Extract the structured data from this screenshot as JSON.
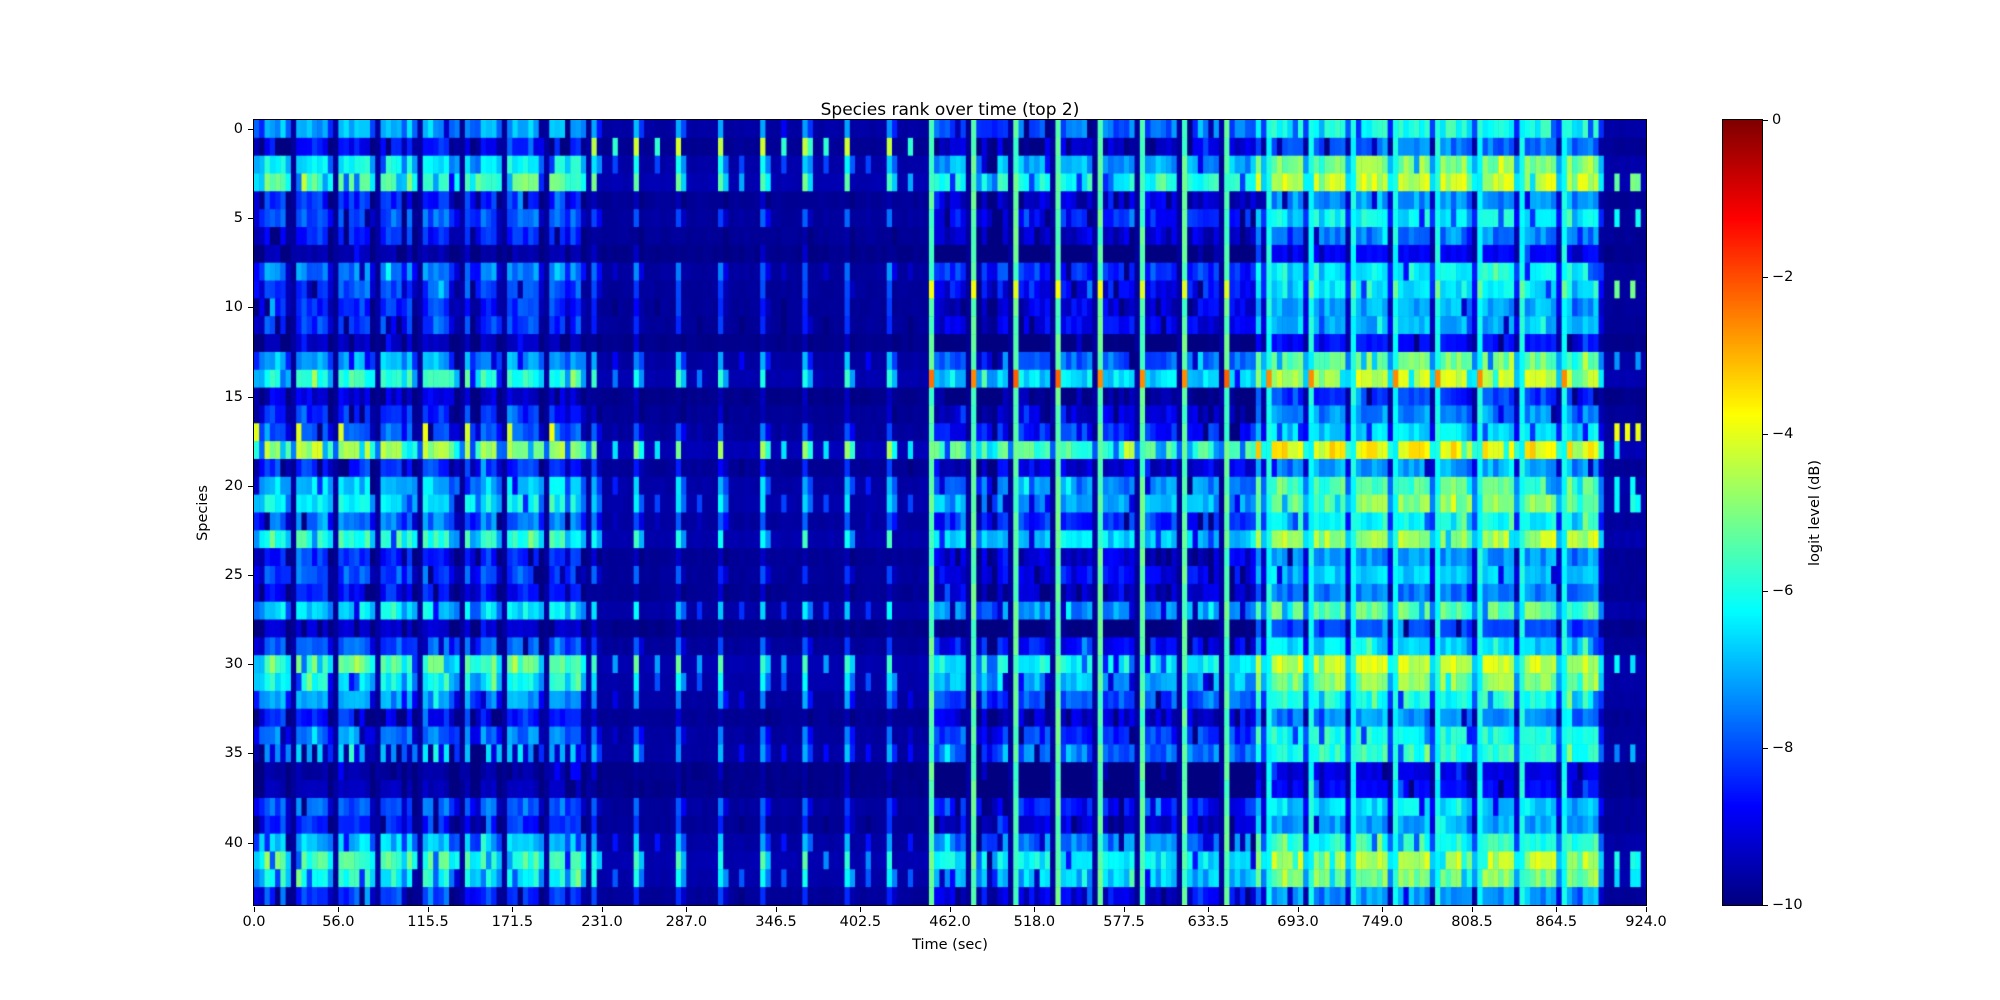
{
  "chart_data": {
    "type": "heatmap",
    "title": "Species rank over time (top 2)",
    "xlabel": "Time (sec)",
    "ylabel": "Species",
    "x_range": [
      0,
      924
    ],
    "n_rows": 44,
    "n_cols": 264,
    "col_seconds": 3.5,
    "period_cols": 8,
    "seed": 7,
    "x_ticks": [
      {
        "t": 0,
        "label": "0.0"
      },
      {
        "t": 56,
        "label": "56.0"
      },
      {
        "t": 115.5,
        "label": "115.5"
      },
      {
        "t": 171.5,
        "label": "171.5"
      },
      {
        "t": 231,
        "label": "231.0"
      },
      {
        "t": 287,
        "label": "287.0"
      },
      {
        "t": 346.5,
        "label": "346.5"
      },
      {
        "t": 402.5,
        "label": "402.5"
      },
      {
        "t": 462,
        "label": "462.0"
      },
      {
        "t": 518,
        "label": "518.0"
      },
      {
        "t": 577.5,
        "label": "577.5"
      },
      {
        "t": 633.5,
        "label": "633.5"
      },
      {
        "t": 693,
        "label": "693.0"
      },
      {
        "t": 749,
        "label": "749.0"
      },
      {
        "t": 808.5,
        "label": "808.5"
      },
      {
        "t": 864.5,
        "label": "864.5"
      },
      {
        "t": 924,
        "label": "924.0"
      }
    ],
    "y_ticks": [
      {
        "v": 0,
        "label": "0"
      },
      {
        "v": 5,
        "label": "5"
      },
      {
        "v": 10,
        "label": "10"
      },
      {
        "v": 15,
        "label": "15"
      },
      {
        "v": 20,
        "label": "20"
      },
      {
        "v": 25,
        "label": "25"
      },
      {
        "v": 30,
        "label": "30"
      },
      {
        "v": 35,
        "label": "35"
      },
      {
        "v": 40,
        "label": "40"
      }
    ],
    "colorbar": {
      "label": "logit level (dB)",
      "vmin": -10,
      "vmax": 0,
      "colormap": "jet",
      "ticks": [
        {
          "v": 0,
          "label": "0"
        },
        {
          "v": -2,
          "label": "−2"
        },
        {
          "v": -4,
          "label": "−4"
        },
        {
          "v": -6,
          "label": "−6"
        },
        {
          "v": -8,
          "label": "−8"
        },
        {
          "v": -10,
          "label": "−10"
        }
      ]
    },
    "sections": [
      {
        "name": "blocks",
        "start_col": 0,
        "end_col": 64,
        "desc": "periodic bright blocks every 28s"
      },
      {
        "name": "sparse",
        "start_col": 64,
        "end_col": 128,
        "desc": "dark background with sparse dashes at period starts"
      },
      {
        "name": "lines",
        "start_col": 128,
        "end_col": 190,
        "desc": "dim blocks with full-height green vertical lines every 28s"
      },
      {
        "name": "bright",
        "start_col": 190,
        "end_col": 256,
        "desc": "overall brighter blocks"
      },
      {
        "name": "dark-end",
        "start_col": 256,
        "end_col": 264,
        "desc": "dark tail with sparse dashes"
      }
    ],
    "rows": [
      {
        "b1": -7.0,
        "b4": -6.0,
        "acc": null
      },
      {
        "b1": -8.6,
        "b4": -7.6,
        "acc": "s2yellow"
      },
      {
        "b1": -6.3,
        "b4": -4.9,
        "acc": null
      },
      {
        "b1": -5.3,
        "b4": -4.3,
        "acc": null
      },
      {
        "b1": -8.4,
        "b4": -7.3,
        "acc": null
      },
      {
        "b1": -7.8,
        "b4": -6.3,
        "acc": null
      },
      {
        "b1": -8.4,
        "b4": -7.5,
        "acc": null
      },
      {
        "b1": -9.5,
        "b4": -8.8,
        "acc": null
      },
      {
        "b1": -7.5,
        "b4": -6.2,
        "acc": null
      },
      {
        "b1": -8.0,
        "b4": -6.4,
        "acc": "lineYellow"
      },
      {
        "b1": -8.3,
        "b4": -7.1,
        "acc": null
      },
      {
        "b1": -8.2,
        "b4": -7.0,
        "acc": null
      },
      {
        "b1": -9.3,
        "b4": -8.6,
        "acc": null
      },
      {
        "b1": -7.0,
        "b4": -5.1,
        "acc": null
      },
      {
        "b1": -5.8,
        "b4": -4.4,
        "acc": "lineOrange"
      },
      {
        "b1": -9.1,
        "b4": -8.2,
        "acc": null
      },
      {
        "b1": -8.4,
        "b4": -7.4,
        "acc": null
      },
      {
        "b1": -7.7,
        "b4": -6.5,
        "acc": "blockYellow"
      },
      {
        "b1": -4.7,
        "b4": -3.7,
        "acc": null
      },
      {
        "b1": -8.3,
        "b4": -7.1,
        "acc": null
      },
      {
        "b1": -6.7,
        "b4": -5.5,
        "acc": null
      },
      {
        "b1": -6.3,
        "b4": -5.0,
        "acc": null
      },
      {
        "b1": -7.6,
        "b4": -6.2,
        "acc": null
      },
      {
        "b1": -5.8,
        "b4": -4.6,
        "acc": null
      },
      {
        "b1": -8.4,
        "b4": -7.2,
        "acc": null
      },
      {
        "b1": -8.0,
        "b4": -6.7,
        "acc": null
      },
      {
        "b1": -8.6,
        "b4": -7.5,
        "acc": null
      },
      {
        "b1": -6.5,
        "b4": -5.3,
        "acc": null
      },
      {
        "b1": -9.2,
        "b4": -8.0,
        "acc": null
      },
      {
        "b1": -7.9,
        "b4": -6.6,
        "acc": null
      },
      {
        "b1": -5.4,
        "b4": -4.3,
        "acc": null
      },
      {
        "b1": -6.2,
        "b4": -4.9,
        "acc": null
      },
      {
        "b1": -7.2,
        "b4": -6.0,
        "acc": null
      },
      {
        "b1": -8.5,
        "b4": -7.4,
        "acc": null
      },
      {
        "b1": -7.5,
        "b4": -6.0,
        "acc": null
      },
      {
        "b1": -6.9,
        "b4": -5.8,
        "acc": "dashes"
      },
      {
        "b1": -9.6,
        "b4": -9.0,
        "acc": null
      },
      {
        "b1": -9.4,
        "b4": -8.7,
        "acc": null
      },
      {
        "b1": -7.8,
        "b4": -6.6,
        "acc": null
      },
      {
        "b1": -8.3,
        "b4": -7.1,
        "acc": null
      },
      {
        "b1": -6.8,
        "b4": -5.8,
        "acc": null
      },
      {
        "b1": -5.6,
        "b4": -4.4,
        "acc": null
      },
      {
        "b1": -6.1,
        "b4": -5.1,
        "acc": null
      },
      {
        "b1": -8.2,
        "b4": -7.2,
        "acc": null
      }
    ],
    "end_dashes": [
      {
        "row": 3,
        "level": -5.2
      },
      {
        "row": 5,
        "level": -6.2
      },
      {
        "row": 9,
        "level": -5.4
      },
      {
        "row": 13,
        "level": -7.0
      },
      {
        "row": 17,
        "level": -4.0
      },
      {
        "row": 18,
        "level": -6.2
      },
      {
        "row": 20,
        "level": -6.4
      },
      {
        "row": 21,
        "level": -6.0
      },
      {
        "row": 30,
        "level": -6.4
      },
      {
        "row": 35,
        "level": -7.2
      },
      {
        "row": 41,
        "level": -6.0
      },
      {
        "row": 42,
        "level": -6.4
      }
    ]
  }
}
